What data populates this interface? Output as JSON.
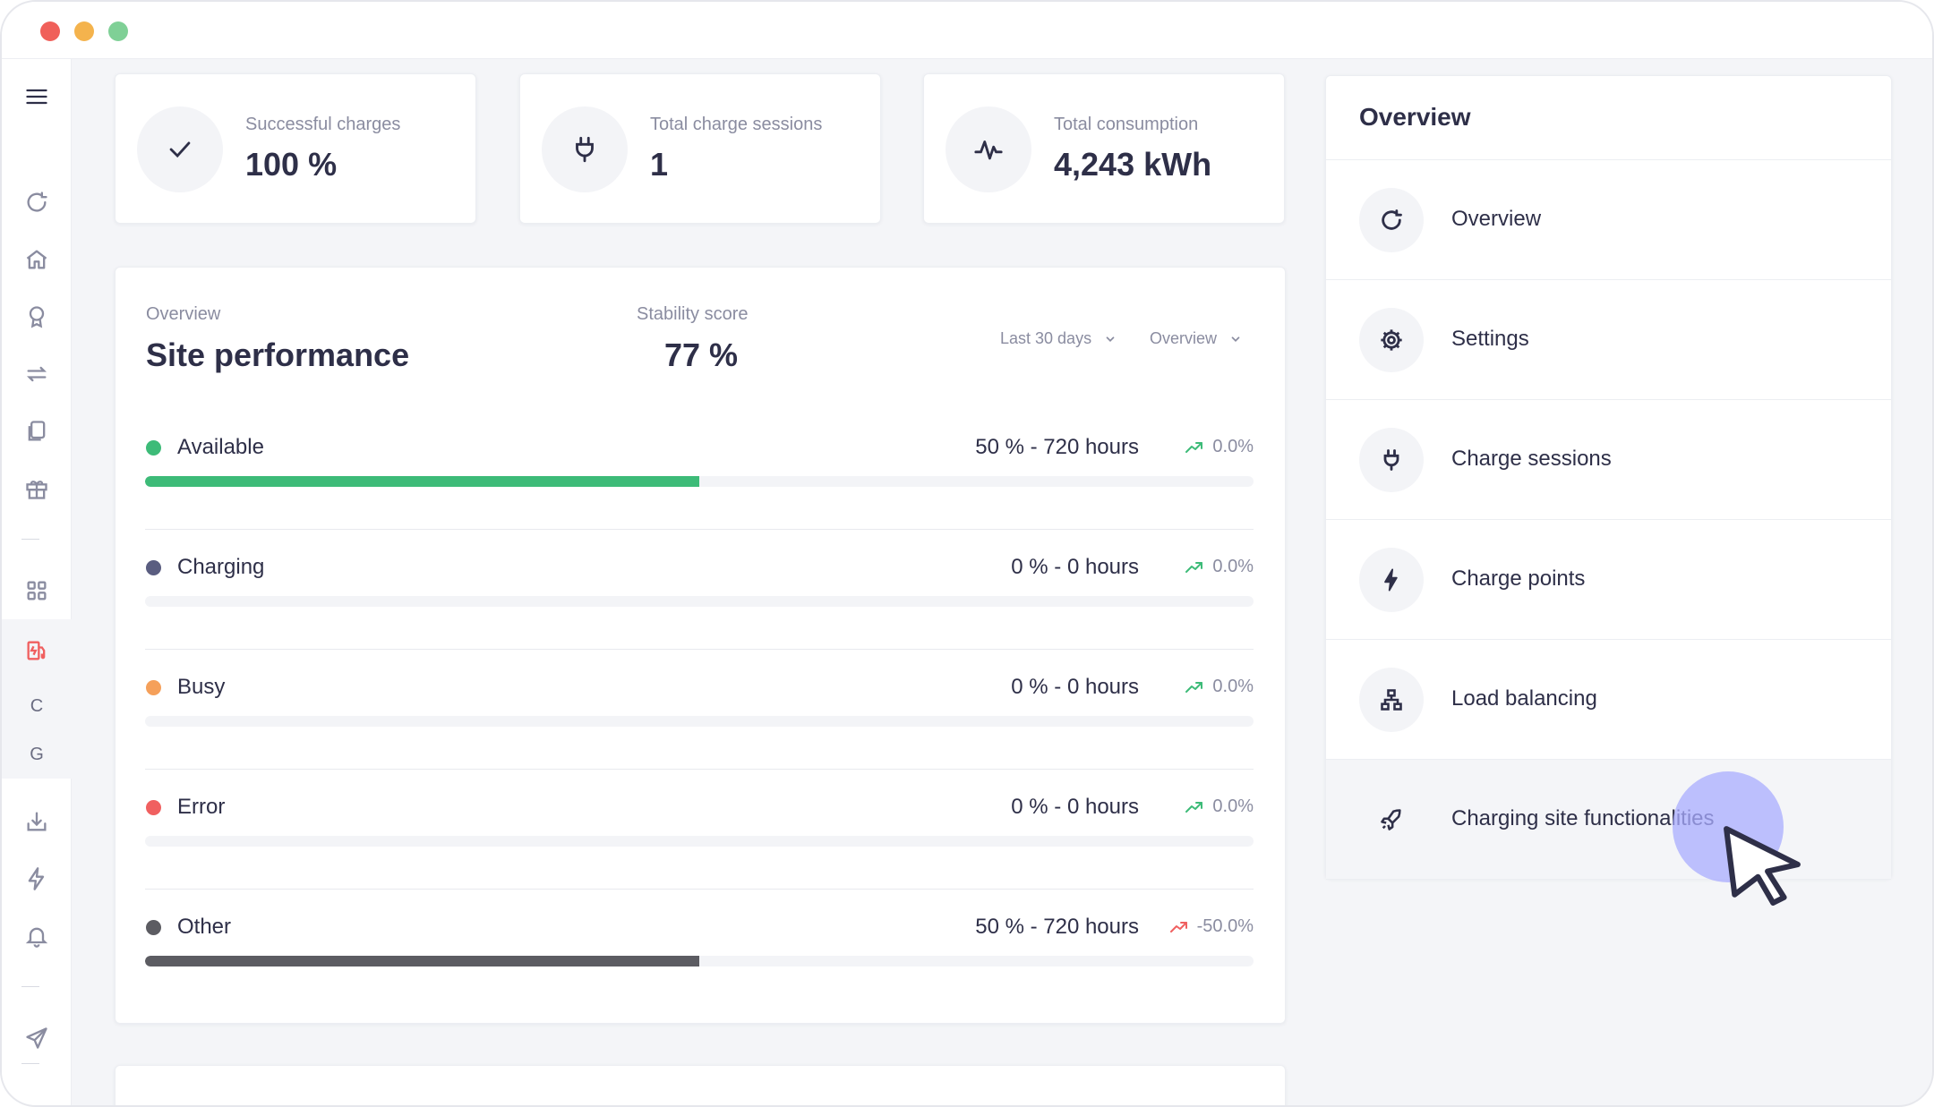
{
  "stats": [
    {
      "label": "Successful charges",
      "value": "100 %",
      "icon": "check-icon"
    },
    {
      "label": "Total charge sessions",
      "value": "1",
      "icon": "plug-icon"
    },
    {
      "label": "Total consumption",
      "value": "4,243 kWh",
      "icon": "activity-icon"
    }
  ],
  "performance": {
    "caption": "Overview",
    "title": "Site performance",
    "stability_caption": "Stability score",
    "stability_value": "77 %",
    "period_dropdown": "Last 30 days",
    "view_dropdown": "Overview",
    "rows": [
      {
        "name": "Available",
        "value": "50 % - 720 hours",
        "trend": "0.0%",
        "fraction": 0.5,
        "color": "#3dbb78",
        "trend_color": "#3dbb78"
      },
      {
        "name": "Charging",
        "value": "0 % - 0 hours",
        "trend": "0.0%",
        "fraction": 0,
        "color": "#5a5d80",
        "trend_color": "#3dbb78"
      },
      {
        "name": "Busy",
        "value": "0 % - 0 hours",
        "trend": "0.0%",
        "fraction": 0,
        "color": "#f5a05a",
        "trend_color": "#3dbb78"
      },
      {
        "name": "Error",
        "value": "0 % - 0 hours",
        "trend": "0.0%",
        "fraction": 0,
        "color": "#f06060",
        "trend_color": "#3dbb78"
      },
      {
        "name": "Other",
        "value": "50 % - 720 hours",
        "trend": "-50.0%",
        "fraction": 0.5,
        "color": "#5c5c62",
        "trend_color": "#f06060"
      }
    ]
  },
  "overview_panel": {
    "title": "Overview",
    "items": [
      {
        "label": "Overview",
        "icon": "refresh-icon"
      },
      {
        "label": "Settings",
        "icon": "gear-icon"
      },
      {
        "label": "Charge sessions",
        "icon": "plug-icon"
      },
      {
        "label": "Charge points",
        "icon": "bolt-icon"
      },
      {
        "label": "Load balancing",
        "icon": "network-icon"
      },
      {
        "label": "Charging site functionalities",
        "icon": "rocket-icon"
      }
    ]
  },
  "sidebar": {
    "letters": [
      "C",
      "G"
    ],
    "icons": [
      "menu-icon",
      "refresh-icon",
      "home-icon",
      "award-icon",
      "transfer-icon",
      "documents-icon",
      "gift-icon",
      "grid-icon",
      "charging-station-icon",
      "download-icon",
      "bolt-icon",
      "bell-icon",
      "send-icon"
    ]
  },
  "colors": {
    "accent": "#2e2f48",
    "available": "#3dbb78",
    "error": "#f06060",
    "busy": "#f5a05a",
    "active_nav": "#f06060",
    "cursor_halo": "#aaacff"
  }
}
